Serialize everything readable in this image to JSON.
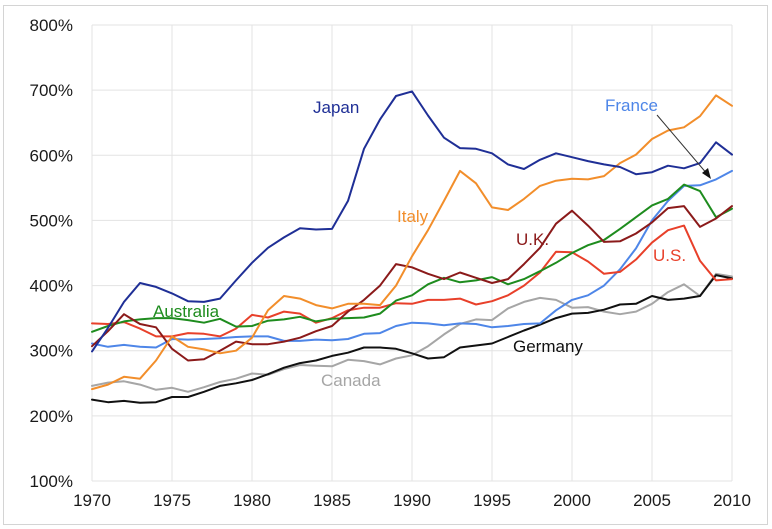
{
  "chart_data": {
    "type": "line",
    "title": "",
    "xlabel": "",
    "ylabel": "",
    "xlim": [
      1970,
      2010
    ],
    "ylim": [
      100,
      800
    ],
    "grid": true,
    "legend": "inline labels",
    "x_ticks": [
      "1970",
      "1975",
      "1980",
      "1985",
      "1990",
      "1995",
      "2000",
      "2005",
      "2010"
    ],
    "y_ticks": [
      "100%",
      "200%",
      "300%",
      "400%",
      "500%",
      "600%",
      "700%",
      "800%"
    ],
    "x_tick_values": [
      1970,
      1975,
      1980,
      1985,
      1990,
      1995,
      2000,
      2005,
      2010
    ],
    "y_tick_values": [
      100,
      200,
      300,
      400,
      500,
      600,
      700,
      800
    ],
    "x": [
      1970,
      1971,
      1972,
      1973,
      1974,
      1975,
      1976,
      1977,
      1978,
      1979,
      1980,
      1981,
      1982,
      1983,
      1984,
      1985,
      1986,
      1987,
      1988,
      1989,
      1990,
      1991,
      1992,
      1993,
      1994,
      1995,
      1996,
      1997,
      1998,
      1999,
      2000,
      2001,
      2002,
      2003,
      2004,
      2005,
      2006,
      2007,
      2008,
      2009,
      2010
    ],
    "series": [
      {
        "name": "Japan",
        "label": "Japan",
        "color": "#1f2f96",
        "values": [
          299,
          335,
          375,
          404,
          398,
          388,
          376,
          375,
          380,
          408,
          435,
          458,
          474,
          488,
          486,
          487,
          530,
          610,
          655,
          691,
          698,
          661,
          627,
          611,
          610,
          603,
          586,
          579,
          593,
          603,
          597,
          591,
          586,
          582,
          571,
          574,
          584,
          580,
          588,
          620,
          601
        ]
      },
      {
        "name": "Italy",
        "label": "Italy",
        "color": "#f28e2b",
        "values": [
          241,
          248,
          260,
          257,
          285,
          322,
          306,
          302,
          296,
          300,
          320,
          362,
          384,
          380,
          370,
          365,
          372,
          372,
          370,
          400,
          445,
          485,
          530,
          576,
          557,
          520,
          516,
          533,
          553,
          561,
          564,
          563,
          568,
          588,
          601,
          625,
          638,
          643,
          660,
          692,
          676
        ]
      },
      {
        "name": "France",
        "label": "France",
        "color": "#4e86e8",
        "values": [
          311,
          306,
          309,
          306,
          305,
          318,
          317,
          318,
          319,
          321,
          322,
          322,
          315,
          315,
          317,
          316,
          318,
          326,
          327,
          338,
          343,
          342,
          339,
          342,
          341,
          336,
          338,
          341,
          342,
          362,
          378,
          385,
          400,
          425,
          457,
          500,
          530,
          553,
          554,
          563,
          576
        ]
      },
      {
        "name": "U.K.",
        "label": "U.K.",
        "color": "#8b1a1a",
        "values": [
          307,
          330,
          356,
          341,
          336,
          303,
          285,
          287,
          300,
          314,
          310,
          310,
          314,
          320,
          330,
          338,
          360,
          378,
          400,
          433,
          428,
          418,
          410,
          420,
          412,
          404,
          410,
          433,
          458,
          495,
          515,
          492,
          467,
          468,
          480,
          497,
          519,
          522,
          490,
          503,
          522
        ]
      },
      {
        "name": "Australia",
        "label": "Australia",
        "color": "#1e8c1e",
        "values": [
          329,
          338,
          345,
          348,
          350,
          350,
          347,
          343,
          349,
          337,
          338,
          346,
          348,
          352,
          345,
          349,
          350,
          351,
          357,
          377,
          385,
          402,
          412,
          405,
          408,
          413,
          402,
          410,
          422,
          435,
          450,
          462,
          470,
          487,
          505,
          523,
          533,
          555,
          545,
          505,
          518
        ]
      },
      {
        "name": "U.S.",
        "label": "U.S.",
        "color": "#e8402a",
        "values": [
          342,
          341,
          344,
          334,
          322,
          322,
          327,
          326,
          322,
          334,
          355,
          351,
          360,
          357,
          343,
          350,
          362,
          366,
          366,
          373,
          372,
          378,
          378,
          380,
          371,
          376,
          385,
          400,
          420,
          452,
          451,
          437,
          418,
          421,
          440,
          466,
          485,
          492,
          438,
          408,
          410
        ]
      },
      {
        "name": "Canada",
        "label": "Canada",
        "color": "#a6a6a6",
        "values": [
          246,
          251,
          253,
          248,
          240,
          243,
          237,
          244,
          252,
          257,
          265,
          263,
          272,
          278,
          277,
          276,
          286,
          284,
          279,
          288,
          293,
          307,
          325,
          341,
          348,
          347,
          365,
          375,
          381,
          378,
          366,
          367,
          360,
          356,
          360,
          372,
          390,
          402,
          384,
          418,
          414
        ]
      },
      {
        "name": "Germany",
        "label": "Germany",
        "color": "#111111",
        "values": [
          225,
          221,
          223,
          220,
          221,
          229,
          229,
          237,
          246,
          250,
          255,
          264,
          274,
          281,
          285,
          292,
          297,
          305,
          305,
          303,
          296,
          288,
          290,
          305,
          308,
          311,
          321,
          331,
          340,
          350,
          357,
          358,
          363,
          371,
          372,
          384,
          378,
          380,
          384,
          416,
          411
        ]
      }
    ],
    "annotations": [
      {
        "text": "Japan",
        "color": "#1f2f96"
      },
      {
        "text": "France",
        "color": "#4e86e8",
        "arrow": true
      },
      {
        "text": "Italy",
        "color": "#f28e2b"
      },
      {
        "text": "U.K.",
        "color": "#8b1a1a"
      },
      {
        "text": "U.S.",
        "color": "#e8402a"
      },
      {
        "text": "Australia",
        "color": "#1e8c1e"
      },
      {
        "text": "Germany",
        "color": "#111111"
      },
      {
        "text": "Canada",
        "color": "#a6a6a6"
      }
    ]
  }
}
